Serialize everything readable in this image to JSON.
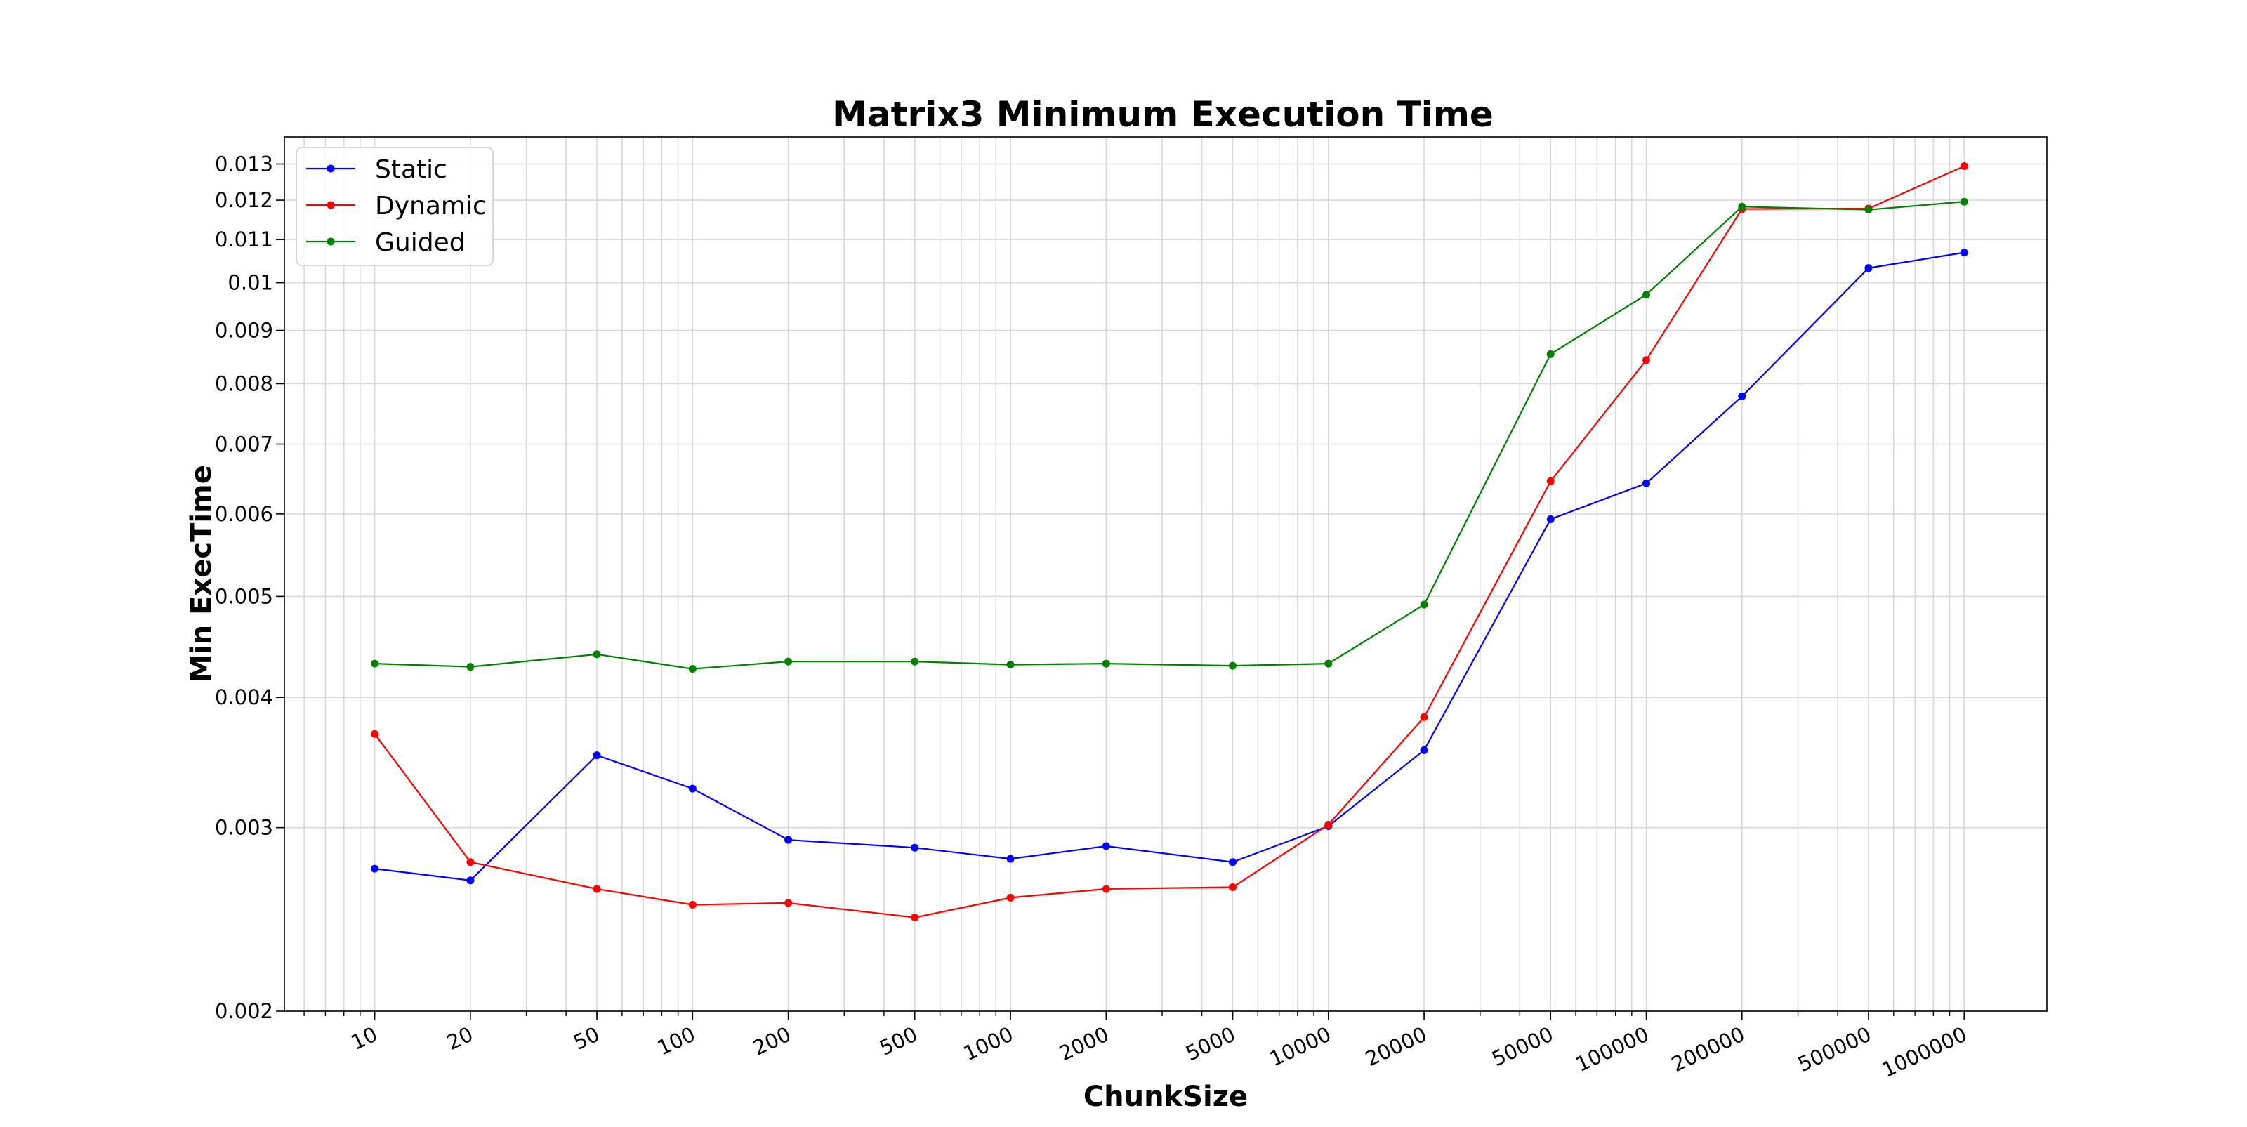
{
  "chart_data": {
    "type": "line",
    "title": "Matrix3 Minimum Execution Time",
    "xlabel": "ChunkSize",
    "ylabel": "Min ExecTime",
    "x_scale": "log",
    "y_scale": "log",
    "xlim": [
      5.2,
      1820000
    ],
    "ylim": [
      0.002,
      0.0138
    ],
    "grid": true,
    "legend_position": "top-left",
    "x": [
      10,
      20,
      50,
      100,
      200,
      500,
      1000,
      2000,
      5000,
      10000,
      20000,
      50000,
      100000,
      200000,
      500000,
      1000000
    ],
    "x_tick_labels": [
      "10",
      "20",
      "50",
      "100",
      "200",
      "500",
      "1000",
      "2000",
      "5000",
      "10000",
      "20000",
      "50000",
      "100000",
      "200000",
      "500000",
      "1000000"
    ],
    "y_ticks": [
      0.002,
      0.003,
      0.004,
      0.005,
      0.006,
      0.007,
      0.008,
      0.009,
      0.01,
      0.011,
      0.012,
      0.013
    ],
    "y_tick_labels": [
      "0.002",
      "0.003",
      "0.004",
      "0.005",
      "0.006",
      "0.007",
      "0.008",
      "0.009",
      "0.01",
      "0.011",
      "0.012",
      "0.013"
    ],
    "series": [
      {
        "name": "Static",
        "color": "#0000ff",
        "values": [
          0.00274,
          0.00267,
          0.00352,
          0.00327,
          0.00292,
          0.00287,
          0.0028,
          0.00288,
          0.00278,
          0.00301,
          0.00356,
          0.00593,
          0.00642,
          0.00778,
          0.01033,
          0.01069
        ]
      },
      {
        "name": "Dynamic",
        "color": "#ff0000",
        "values": [
          0.00369,
          0.00278,
          0.00262,
          0.00253,
          0.00254,
          0.00246,
          0.00257,
          0.00262,
          0.00263,
          0.00302,
          0.00383,
          0.00645,
          0.00843,
          0.01177,
          0.01178,
          0.01294
        ]
      },
      {
        "name": "Guided",
        "color": "#008000",
        "values": [
          0.00431,
          0.00428,
          0.0044,
          0.00426,
          0.00433,
          0.00433,
          0.0043,
          0.00431,
          0.00429,
          0.00431,
          0.00491,
          0.00854,
          0.00974,
          0.01183,
          0.01175,
          0.01196
        ]
      }
    ]
  }
}
